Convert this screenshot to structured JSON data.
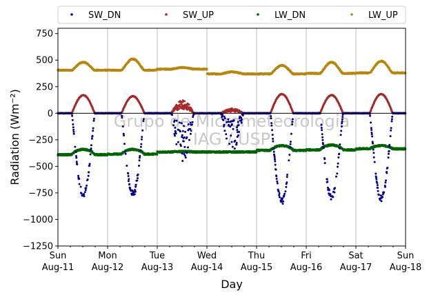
{
  "chart_data": {
    "type": "scatter",
    "xlabel": "Day",
    "ylabel": "Radiation (Wm⁻²)",
    "ylim": [
      -1250,
      800
    ],
    "xlim": [
      "2019-08-11",
      "2019-08-18"
    ],
    "yticks": [
      -1250,
      -1000,
      -750,
      -500,
      -250,
      0,
      250,
      500,
      750
    ],
    "ytick_labels": [
      "−1250",
      "−1000",
      "−750",
      "−500",
      "−250",
      "0",
      "250",
      "500",
      "750"
    ],
    "xticks": [
      {
        "weekday": "Sun",
        "date": "Aug-11"
      },
      {
        "weekday": "Mon",
        "date": "Aug-12"
      },
      {
        "weekday": "Tue",
        "date": "Aug-13"
      },
      {
        "weekday": "Wed",
        "date": "Aug-14"
      },
      {
        "weekday": "Thu",
        "date": "Aug-15"
      },
      {
        "weekday": "Fri",
        "date": "Aug-16"
      },
      {
        "weekday": "Sat",
        "date": "Aug-17"
      },
      {
        "weekday": "Sun",
        "date": "Aug-18"
      }
    ],
    "grid": "vertical",
    "legend_position": "top",
    "reference_line_y": 0,
    "watermark": [
      "Grupo de Micrometeorologia",
      "IAG / USP"
    ],
    "series": [
      {
        "name": "SW_DN",
        "color": "#00008b",
        "daily_extrema": [
          -770,
          -760,
          -450,
          -330,
          -830,
          -790,
          -800
        ]
      },
      {
        "name": "SW_UP",
        "color": "#a52a2a",
        "daily_extrema": [
          170,
          160,
          110,
          40,
          180,
          170,
          180
        ]
      },
      {
        "name": "LW_DN",
        "color": "#006400",
        "daily_night": [
          -390,
          -385,
          -365,
          -365,
          -350,
          -345,
          -335
        ],
        "daily_day": [
          -340,
          -340,
          -360,
          -365,
          -305,
          -300,
          -305
        ]
      },
      {
        "name": "LW_UP",
        "color": "#b8860b",
        "daily_night": [
          405,
          405,
          415,
          370,
          370,
          375,
          380
        ],
        "daily_day": [
          480,
          510,
          430,
          390,
          450,
          480,
          490
        ]
      }
    ]
  }
}
